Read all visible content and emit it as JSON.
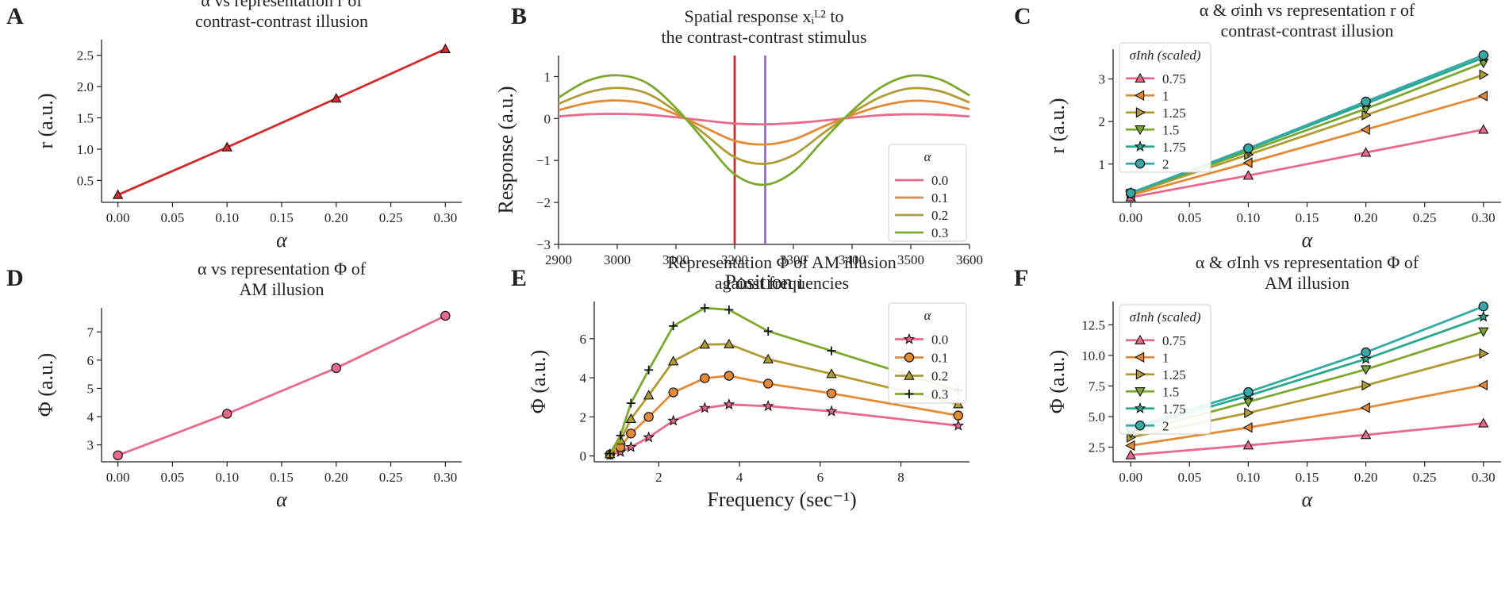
{
  "palette": {
    "c0": "#e8698a",
    "c1": "#e28a34",
    "c2": "#b09b34",
    "c3": "#7aa92e",
    "c4": "#2aa88d",
    "c5": "#35a9a5",
    "red": "#d12b2b",
    "purple": "#9b6bcb"
  },
  "chart_data": [
    {
      "id": "A",
      "panel_label": "A",
      "type": "line",
      "title_lines": [
        "α vs representation r of",
        "contrast-contrast illusion"
      ],
      "xlabel": "α",
      "ylabel": "r (a.u.)",
      "xlim": [
        -0.015,
        0.315
      ],
      "ylim": [
        0.15,
        2.75
      ],
      "xticks": [
        0,
        0.05,
        0.1,
        0.15,
        0.2,
        0.25,
        0.3
      ],
      "xtick_labels": [
        "0.00",
        "0.05",
        "0.10",
        "0.15",
        "0.20",
        "0.25",
        "0.30"
      ],
      "yticks": [
        0.5,
        1.0,
        1.5,
        2.0,
        2.5
      ],
      "ytick_labels": [
        "0.5",
        "1.0",
        "1.5",
        "2.0",
        "2.5"
      ],
      "series": [
        {
          "name": "r",
          "color": "#d12b2b",
          "marker": "triangle",
          "x": [
            0,
            0.1,
            0.2,
            0.3
          ],
          "y": [
            0.27,
            1.03,
            1.81,
            2.6
          ]
        }
      ]
    },
    {
      "id": "B",
      "panel_label": "B",
      "type": "line",
      "title_lines": [
        "Spatial response xᵢᴸ² to",
        "the contrast-contrast stimulus"
      ],
      "xlabel": "Position i",
      "ylabel": "Response (a.u.)",
      "xlim": [
        2900,
        3600
      ],
      "ylim": [
        -3,
        1.5
      ],
      "xticks": [
        2900,
        3000,
        3100,
        3200,
        3300,
        3400,
        3500,
        3600
      ],
      "xtick_labels": [
        "2900",
        "3000",
        "3100",
        "3200",
        "3300",
        "3400",
        "3500",
        "3600"
      ],
      "yticks": [
        -3,
        -2,
        -1,
        0,
        1
      ],
      "ytick_labels": [
        "−3",
        "−2",
        "−1",
        "0",
        "1"
      ],
      "legend_title": "α",
      "legend_position": "lower-right",
      "vlines": [
        {
          "x": 3200,
          "color": "#d12b2b"
        },
        {
          "x": 3252,
          "color": "#9b6bcb"
        }
      ],
      "series": [
        {
          "name": "0.0",
          "color": "#e8698a",
          "marker": "none",
          "x": [
            2900,
            2950,
            3000,
            3050,
            3100,
            3150,
            3200,
            3250,
            3300,
            3350,
            3400,
            3450,
            3500,
            3550,
            3600
          ],
          "y": [
            0.05,
            0.1,
            0.11,
            0.09,
            0.03,
            -0.05,
            -0.12,
            -0.14,
            -0.11,
            -0.05,
            0.02,
            0.08,
            0.1,
            0.09,
            0.05
          ]
        },
        {
          "name": "0.1",
          "color": "#e28a34",
          "marker": "none",
          "x": [
            2900,
            2950,
            3000,
            3050,
            3100,
            3150,
            3200,
            3250,
            3300,
            3350,
            3400,
            3450,
            3500,
            3550,
            3600
          ],
          "y": [
            0.2,
            0.37,
            0.43,
            0.35,
            0.1,
            -0.22,
            -0.53,
            -0.62,
            -0.5,
            -0.2,
            0.08,
            0.3,
            0.42,
            0.38,
            0.22
          ]
        },
        {
          "name": "0.2",
          "color": "#b09b34",
          "marker": "none",
          "x": [
            2900,
            2950,
            3000,
            3050,
            3100,
            3150,
            3200,
            3250,
            3300,
            3350,
            3400,
            3450,
            3500,
            3550,
            3600
          ],
          "y": [
            0.35,
            0.62,
            0.73,
            0.6,
            0.17,
            -0.38,
            -0.92,
            -1.08,
            -0.87,
            -0.36,
            0.13,
            0.52,
            0.72,
            0.65,
            0.38
          ]
        },
        {
          "name": "0.3",
          "color": "#7aa92e",
          "marker": "none",
          "x": [
            2900,
            2950,
            3000,
            3050,
            3100,
            3150,
            3200,
            3250,
            3300,
            3350,
            3400,
            3450,
            3500,
            3550,
            3600
          ],
          "y": [
            0.5,
            0.9,
            1.03,
            0.85,
            0.25,
            -0.55,
            -1.33,
            -1.58,
            -1.27,
            -0.53,
            0.18,
            0.75,
            1.02,
            0.93,
            0.55
          ]
        }
      ]
    },
    {
      "id": "C",
      "panel_label": "C",
      "type": "line",
      "title_lines": [
        "α & σinh vs representation r of",
        "contrast-contrast illusion"
      ],
      "xlabel": "α",
      "ylabel": "r (a.u.)",
      "xlim": [
        -0.015,
        0.315
      ],
      "ylim": [
        0.1,
        3.7
      ],
      "xticks": [
        0,
        0.05,
        0.1,
        0.15,
        0.2,
        0.25,
        0.3
      ],
      "xtick_labels": [
        "0.00",
        "0.05",
        "0.10",
        "0.15",
        "0.20",
        "0.25",
        "0.30"
      ],
      "yticks": [
        1,
        2,
        3
      ],
      "ytick_labels": [
        "1",
        "2",
        "3"
      ],
      "legend_title": "σInh (scaled)",
      "legend_position": "upper-left",
      "series": [
        {
          "name": "0.75",
          "color": "#e8698a",
          "marker": "triangle",
          "x": [
            0,
            0.1,
            0.2,
            0.3
          ],
          "y": [
            0.22,
            0.73,
            1.27,
            1.81
          ]
        },
        {
          "name": "1",
          "color": "#e28a34",
          "marker": "tri-left",
          "x": [
            0,
            0.1,
            0.2,
            0.3
          ],
          "y": [
            0.27,
            1.03,
            1.81,
            2.6
          ]
        },
        {
          "name": "1.25",
          "color": "#b09b34",
          "marker": "tri-right",
          "x": [
            0,
            0.1,
            0.2,
            0.3
          ],
          "y": [
            0.3,
            1.22,
            2.15,
            3.1
          ]
        },
        {
          "name": "1.5",
          "color": "#7aa92e",
          "marker": "tri-down",
          "x": [
            0,
            0.1,
            0.2,
            0.3
          ],
          "y": [
            0.31,
            1.3,
            2.3,
            3.38
          ]
        },
        {
          "name": "1.75",
          "color": "#2aa88d",
          "marker": "star",
          "x": [
            0,
            0.1,
            0.2,
            0.3
          ],
          "y": [
            0.32,
            1.35,
            2.42,
            3.5
          ]
        },
        {
          "name": "2",
          "color": "#35a9a5",
          "marker": "circle",
          "x": [
            0,
            0.1,
            0.2,
            0.3
          ],
          "y": [
            0.32,
            1.37,
            2.47,
            3.56
          ]
        }
      ]
    },
    {
      "id": "D",
      "panel_label": "D",
      "type": "line",
      "title_lines": [
        "α vs representation Φ of",
        "AM illusion"
      ],
      "xlabel": "α",
      "ylabel": "Φ (a.u.)",
      "xlim": [
        -0.015,
        0.315
      ],
      "ylim": [
        2.4,
        7.85
      ],
      "xticks": [
        0,
        0.05,
        0.1,
        0.15,
        0.2,
        0.25,
        0.3
      ],
      "xtick_labels": [
        "0.00",
        "0.05",
        "0.10",
        "0.15",
        "0.20",
        "0.25",
        "0.30"
      ],
      "yticks": [
        3,
        4,
        5,
        6,
        7
      ],
      "ytick_labels": [
        "3",
        "4",
        "5",
        "6",
        "7"
      ],
      "series": [
        {
          "name": "Φ",
          "color": "#e8698a",
          "marker": "circle",
          "x": [
            0,
            0.1,
            0.2,
            0.3
          ],
          "y": [
            2.63,
            4.1,
            5.72,
            7.57
          ]
        }
      ]
    },
    {
      "id": "E",
      "panel_label": "E",
      "type": "line",
      "title_lines": [
        "Representation Φ of AM illusion",
        "against frequencies"
      ],
      "xlabel": "Frequency (sec⁻¹)",
      "ylabel": "Φ (a.u.)",
      "xlim": [
        0.4,
        9.7
      ],
      "ylim": [
        -0.3,
        7.9
      ],
      "xticks": [
        2,
        4,
        6,
        8
      ],
      "xtick_labels": [
        "2",
        "4",
        "6",
        "8"
      ],
      "yticks": [
        0,
        2,
        4,
        6
      ],
      "ytick_labels": [
        "0",
        "2",
        "4",
        "6"
      ],
      "legend_title": "α",
      "legend_position": "upper-right",
      "series": [
        {
          "name": "0.0",
          "color": "#e8698a",
          "marker": "star",
          "x": [
            0.79,
            1.05,
            1.31,
            1.75,
            2.36,
            3.14,
            3.74,
            4.71,
            6.28,
            9.42
          ],
          "y": [
            0.05,
            0.2,
            0.45,
            0.95,
            1.8,
            2.45,
            2.63,
            2.55,
            2.28,
            1.55
          ]
        },
        {
          "name": "0.1",
          "color": "#e28a34",
          "marker": "circle",
          "x": [
            0.79,
            1.05,
            1.31,
            1.75,
            2.36,
            3.14,
            3.74,
            4.71,
            6.28,
            9.42
          ],
          "y": [
            0.08,
            0.45,
            1.15,
            2.0,
            3.25,
            3.98,
            4.1,
            3.7,
            3.2,
            2.07
          ]
        },
        {
          "name": "0.2",
          "color": "#b09b34",
          "marker": "triangle",
          "x": [
            0.79,
            1.05,
            1.31,
            1.75,
            2.36,
            3.14,
            3.74,
            4.71,
            6.28,
            9.42
          ],
          "y": [
            0.1,
            0.8,
            1.9,
            3.1,
            4.85,
            5.7,
            5.72,
            4.95,
            4.2,
            2.65
          ]
        },
        {
          "name": "0.3",
          "color": "#7aa92e",
          "marker": "plus",
          "x": [
            0.79,
            1.05,
            1.31,
            1.75,
            2.36,
            3.14,
            3.74,
            4.71,
            6.28,
            9.42
          ],
          "y": [
            0.12,
            1.05,
            2.7,
            4.4,
            6.65,
            7.57,
            7.48,
            6.38,
            5.38,
            3.35
          ]
        }
      ]
    },
    {
      "id": "F",
      "panel_label": "F",
      "type": "line",
      "title_lines": [
        "α & σInh vs representation Φ of",
        "AM illusion"
      ],
      "xlabel": "α",
      "ylabel": "Φ (a.u.)",
      "xlim": [
        -0.015,
        0.315
      ],
      "ylim": [
        1.3,
        14.4
      ],
      "xticks": [
        0,
        0.05,
        0.1,
        0.15,
        0.2,
        0.25,
        0.3
      ],
      "xtick_labels": [
        "0.00",
        "0.05",
        "0.10",
        "0.15",
        "0.20",
        "0.25",
        "0.30"
      ],
      "yticks": [
        2.5,
        5.0,
        7.5,
        10.0,
        12.5
      ],
      "ytick_labels": [
        "2.5",
        "5.0",
        "7.5",
        "10.0",
        "12.5"
      ],
      "legend_title": "σInh (scaled)",
      "legend_position": "upper-left",
      "series": [
        {
          "name": "0.75",
          "color": "#e8698a",
          "marker": "triangle",
          "x": [
            0,
            0.1,
            0.2,
            0.3
          ],
          "y": [
            1.85,
            2.65,
            3.5,
            4.45
          ]
        },
        {
          "name": "1",
          "color": "#e28a34",
          "marker": "tri-left",
          "x": [
            0,
            0.1,
            0.2,
            0.3
          ],
          "y": [
            2.63,
            4.1,
            5.72,
            7.57
          ]
        },
        {
          "name": "1.25",
          "color": "#b09b34",
          "marker": "tri-right",
          "x": [
            0,
            0.1,
            0.2,
            0.3
          ],
          "y": [
            3.3,
            5.3,
            7.55,
            10.15
          ]
        },
        {
          "name": "1.5",
          "color": "#7aa92e",
          "marker": "tri-down",
          "x": [
            0,
            0.1,
            0.2,
            0.3
          ],
          "y": [
            3.65,
            6.2,
            8.85,
            11.95
          ]
        },
        {
          "name": "1.75",
          "color": "#2aa88d",
          "marker": "star",
          "x": [
            0,
            0.1,
            0.2,
            0.3
          ],
          "y": [
            3.95,
            6.7,
            9.7,
            13.15
          ]
        },
        {
          "name": "2",
          "color": "#35a9a5",
          "marker": "circle",
          "x": [
            0,
            0.1,
            0.2,
            0.3
          ],
          "y": [
            4.1,
            7.0,
            10.25,
            14.0
          ]
        }
      ]
    }
  ]
}
